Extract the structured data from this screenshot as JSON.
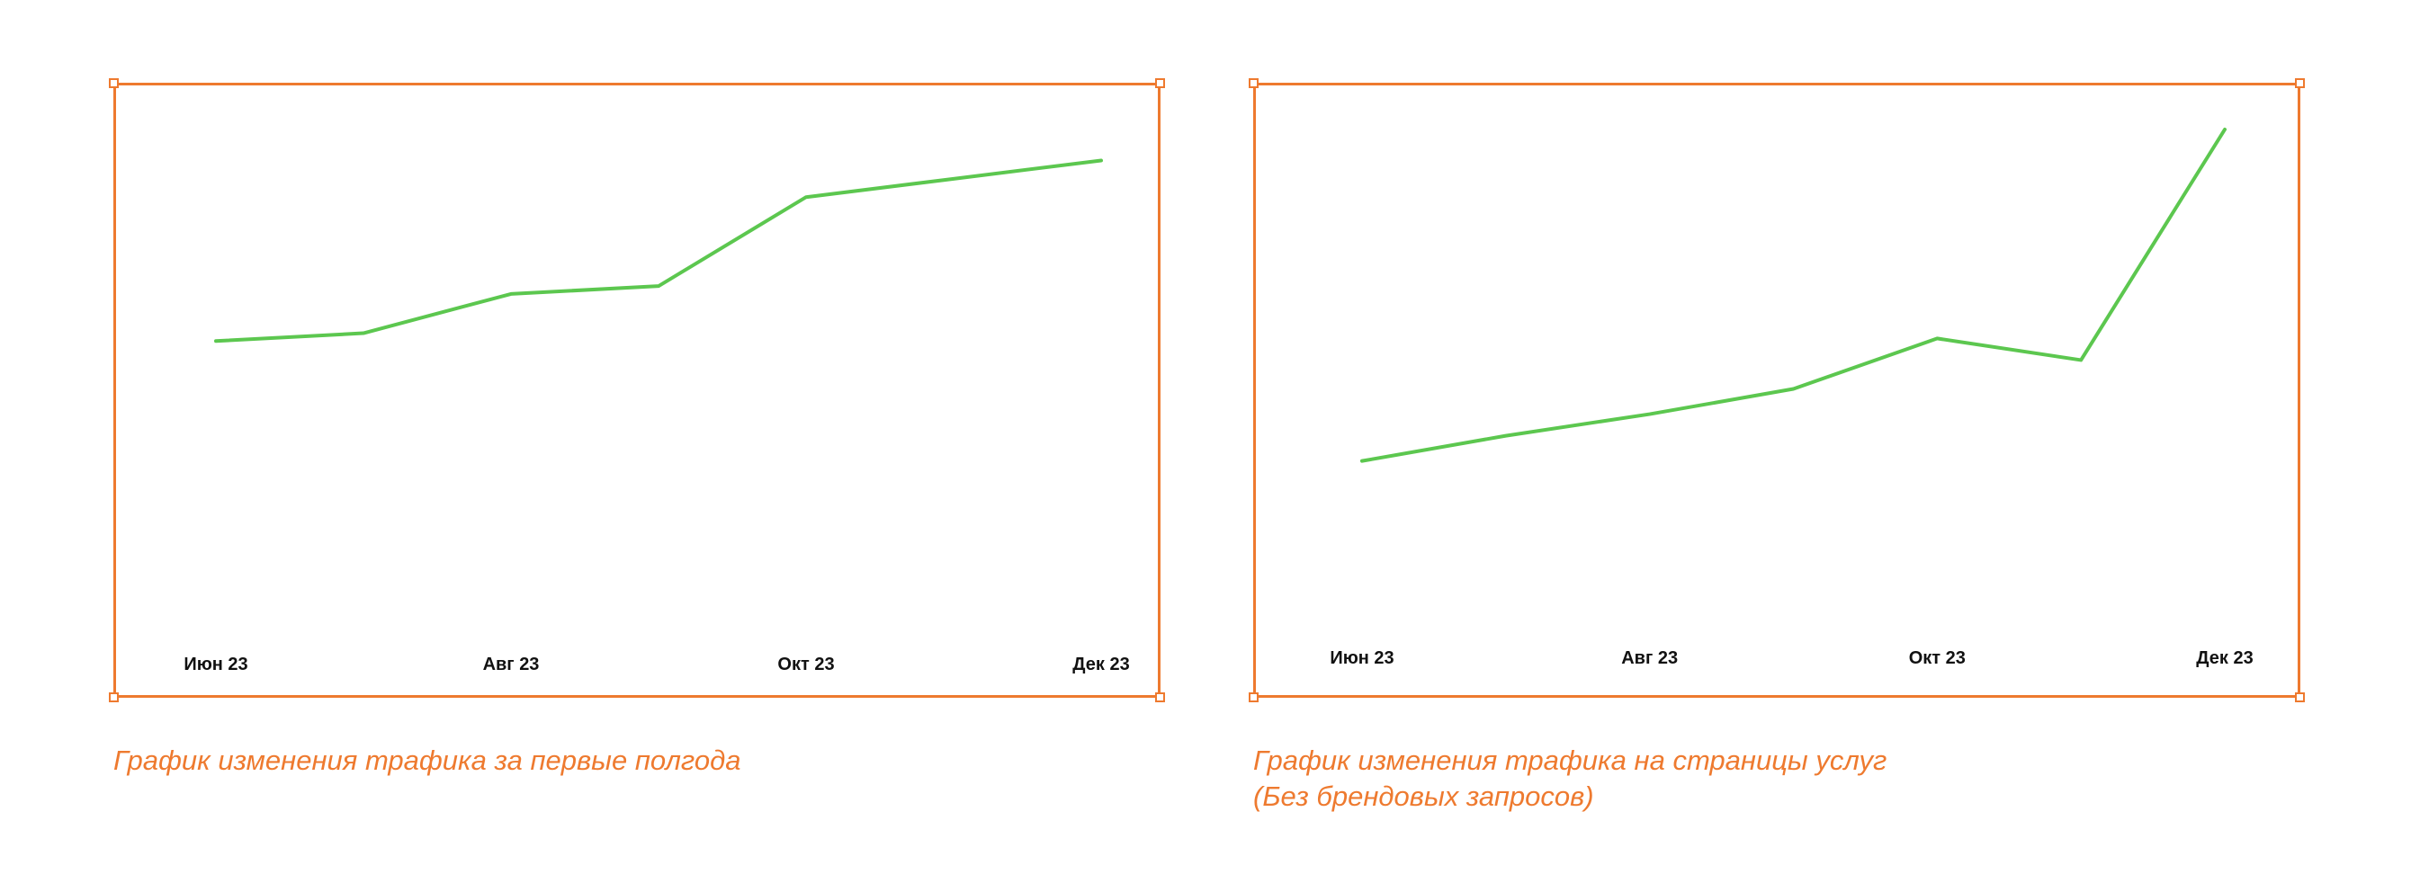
{
  "colors": {
    "frame": "#ee7a2f",
    "caption": "#ee7a2f",
    "line": "#5cc74f",
    "grid_top": "#5a4fc8",
    "grid_bottom": "#2f7fd8",
    "grid_faded": "#c9c4ef"
  },
  "charts": [
    {
      "caption": "График изменения трафика за первые полгода",
      "chart_data": {
        "type": "line",
        "title": "",
        "xlabel": "",
        "ylabel": "",
        "categories": [
          "Июн 23",
          "Авг 23",
          "Окт 23",
          "Дек 23"
        ],
        "x_ticks": [
          "Июн 23",
          "Авг 23",
          "Окт 23",
          "Дек 23"
        ],
        "y_gridlines": 10,
        "ylim": [
          0,
          10
        ],
        "grid": true,
        "legend": "none",
        "x": [
          0,
          1,
          2,
          3,
          4,
          5,
          6
        ],
        "series": [
          {
            "values": [
              5.7,
              5.85,
              6.6,
              6.75,
              8.45,
              8.8,
              9.15
            ]
          }
        ]
      }
    },
    {
      "caption_lines": [
        "График изменения трафика на страницы услуг",
        "(Без брендовых запросов)"
      ],
      "chart_data": {
        "type": "line",
        "title": "",
        "xlabel": "",
        "ylabel": "",
        "categories": [
          "Июн 23",
          "Авг 23",
          "Окт 23",
          "Дек 23"
        ],
        "x_ticks": [
          "Июн 23",
          "Авг 23",
          "Окт 23",
          "Дек 23"
        ],
        "y_gridlines": 7,
        "ylim": [
          0,
          7
        ],
        "grid": true,
        "legend": "none",
        "x": [
          0,
          1,
          2,
          3,
          4,
          5,
          6
        ],
        "series": [
          {
            "values": [
              2.4,
              2.75,
              3.05,
              3.4,
              4.1,
              3.8,
              7.0
            ]
          }
        ]
      }
    }
  ]
}
